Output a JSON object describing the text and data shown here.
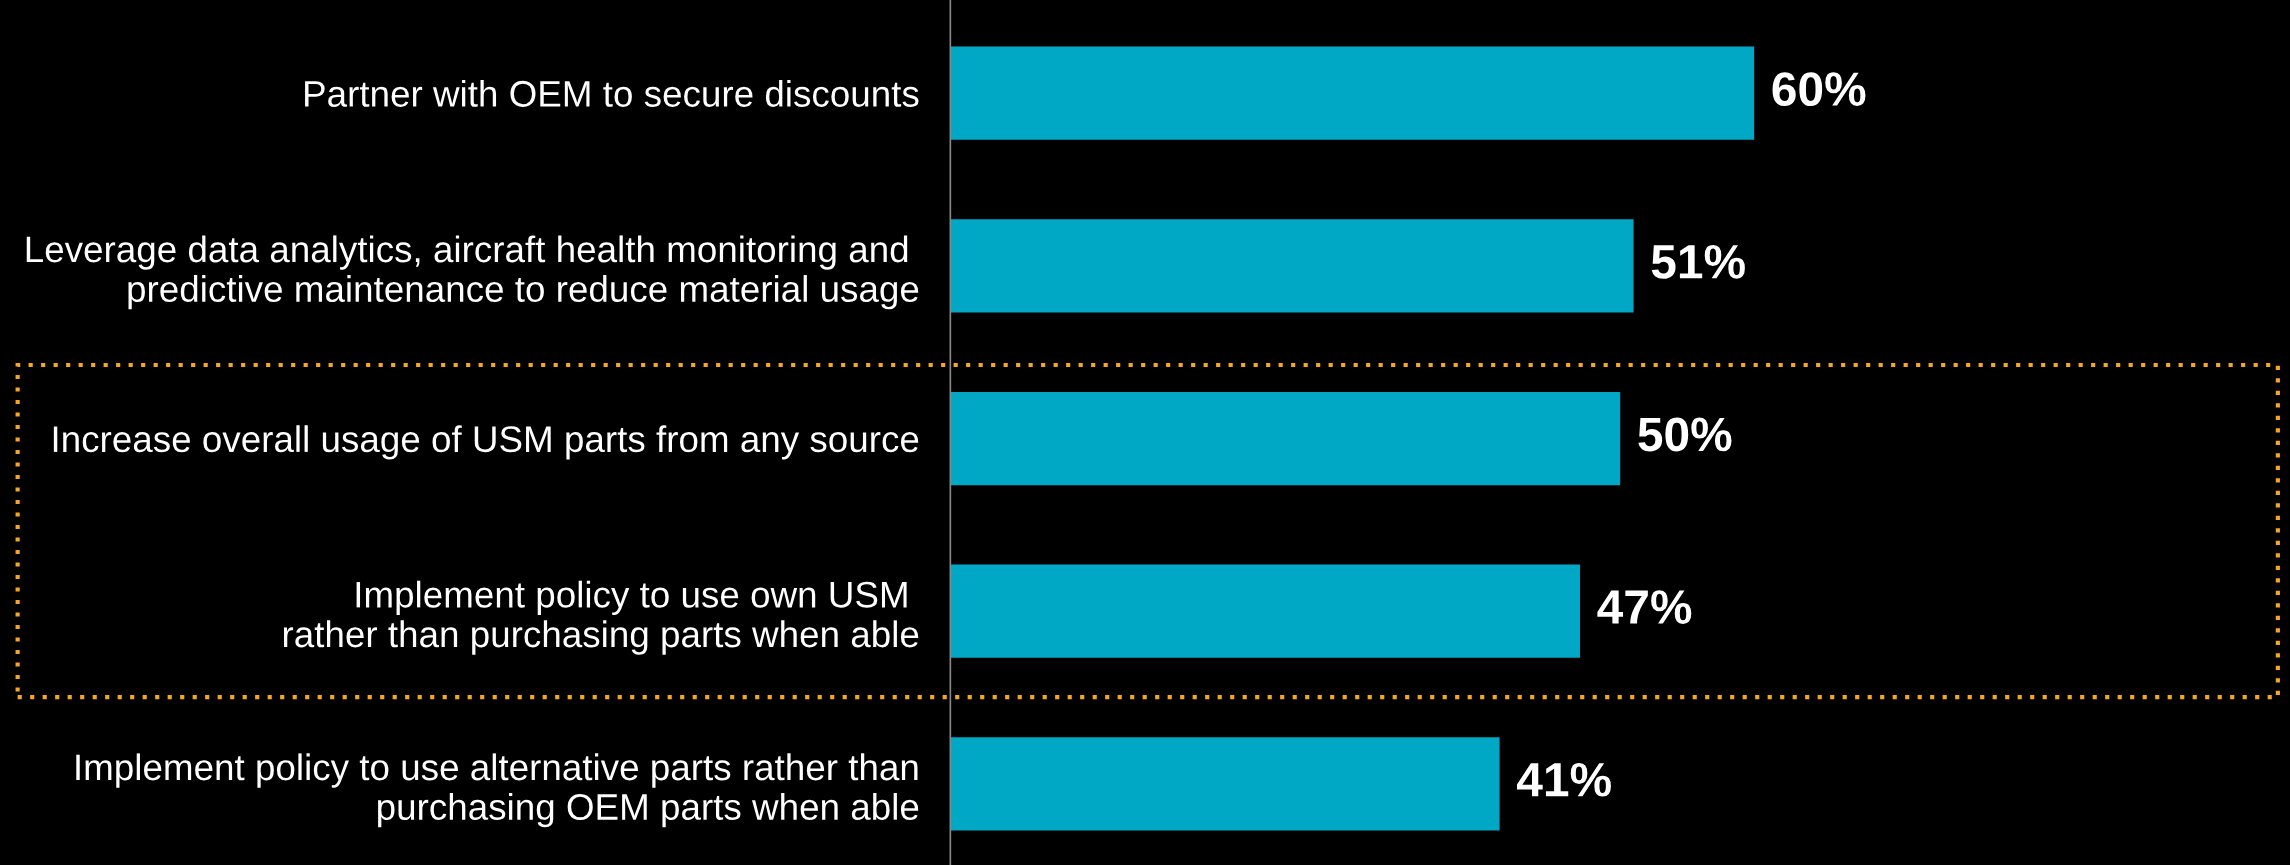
{
  "chart_data": {
    "type": "bar",
    "orientation": "horizontal",
    "categories": [
      "Partner with OEM to secure discounts",
      "Leverage data analytics, aircraft health monitoring and \npredictive maintenance to reduce material usage",
      "Increase overall usage of USM parts from any source",
      "Implement policy to use own USM \nrather than purchasing parts when able",
      "Implement policy to use alternative parts rather than\npurchasing OEM parts when able"
    ],
    "values": [
      60,
      51,
      50,
      47,
      41
    ],
    "value_labels": [
      "60%",
      "51%",
      "50%",
      "47%",
      "41%"
    ],
    "color": "#00a8c6",
    "xlim": [
      0,
      100
    ],
    "tick_labels": "y",
    "grid": false,
    "legend": false
  }
}
